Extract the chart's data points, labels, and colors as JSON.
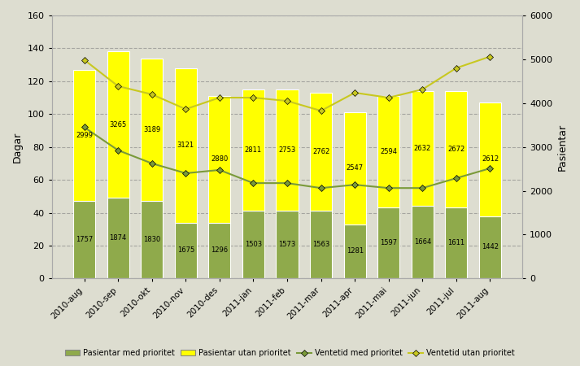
{
  "categories": [
    "2010-aug",
    "2010-sep",
    "2010-okt",
    "2010-nov",
    "2010-des",
    "2011-jan",
    "2011-feb",
    "2011-mar",
    "2011-apr",
    "2011-mai",
    "2011-jun",
    "2011-jul",
    "2011-aug"
  ],
  "bar_prioritert_days": [
    47,
    49,
    47,
    34,
    34,
    41,
    41,
    41,
    33,
    43,
    44,
    43,
    38
  ],
  "bar_uprioritert_days": [
    80,
    89,
    87,
    94,
    77,
    74,
    74,
    72,
    68,
    68,
    70,
    71,
    69
  ],
  "label_prioritert": [
    1757,
    1874,
    1830,
    1675,
    1296,
    1503,
    1573,
    1563,
    1281,
    1597,
    1664,
    1611,
    1442
  ],
  "label_uprioritert": [
    2999,
    3265,
    3189,
    3121,
    2880,
    2811,
    2753,
    2762,
    2547,
    2594,
    2632,
    2672,
    2612
  ],
  "ventetid_prioritert": [
    92,
    78,
    70,
    64,
    66,
    58,
    58,
    55,
    57,
    55,
    55,
    61,
    67
  ],
  "ventetid_uprioritert": [
    133,
    117,
    112,
    103,
    110,
    110,
    108,
    102,
    113,
    110,
    115,
    128,
    135
  ],
  "bar_color_prioritert": "#8faa4b",
  "bar_color_uprioritert": "#ffff00",
  "line_color_prioritert": "#7a9a3a",
  "line_color_uprioritert": "#c8c820",
  "ylabel_left": "Dagar",
  "ylabel_right": "Pasientar",
  "ylim_left": [
    0,
    160
  ],
  "ylim_right": [
    0,
    6000
  ],
  "yticks_left": [
    0,
    20,
    40,
    60,
    80,
    100,
    120,
    140,
    160
  ],
  "yticks_right": [
    0,
    1000,
    2000,
    3000,
    4000,
    5000,
    6000
  ],
  "background_color": "#ddddd0",
  "legend_prioritert_bar": "Pasientar med prioritet",
  "legend_uprioritert_bar": "Pasientar utan prioritet",
  "legend_prioritert_line": "Ventetid med prioritet",
  "legend_uprioritert_line": "Ventetid utan prioritet"
}
